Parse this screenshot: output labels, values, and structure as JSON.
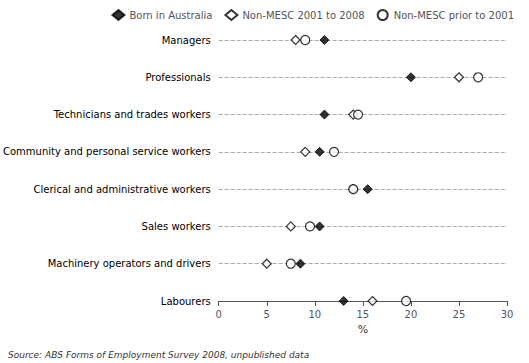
{
  "chart_data": {
    "type": "scatter",
    "orientation": "horizontal",
    "categories": [
      "Managers",
      "Professionals",
      "Technicians and trades workers",
      "Community and personal service workers",
      "Clerical and administrative workers",
      "Sales workers",
      "Machinery operators and drivers",
      "Labourers"
    ],
    "series": [
      {
        "name": "Born in Australia",
        "color": "#000000",
        "marker": "filled_diamond",
        "values": [
          11.0,
          20.0,
          11.0,
          10.5,
          15.5,
          10.5,
          8.5,
          13.0
        ]
      },
      {
        "name": "Non-MESC 2001 to 2008",
        "color": "#000000",
        "marker": "open_diamond",
        "values": [
          8.0,
          25.0,
          14.0,
          9.0,
          14.0,
          7.5,
          5.0,
          16.0
        ]
      },
      {
        "name": "Non-MESC prior to 2001",
        "color": "#000000",
        "marker": "open_circle",
        "values": [
          9.0,
          27.0,
          14.5,
          12.0,
          14.0,
          9.5,
          7.5,
          19.5
        ]
      }
    ],
    "xlabel": "%",
    "xlim": [
      0,
      30
    ],
    "xticks": [
      0,
      5,
      10,
      15,
      20,
      25,
      30
    ],
    "grid": true,
    "legend": "upper right",
    "annotations": [
      "Source: ABS Forms of Employment Survey 2008, unpublished data"
    ]
  }
}
